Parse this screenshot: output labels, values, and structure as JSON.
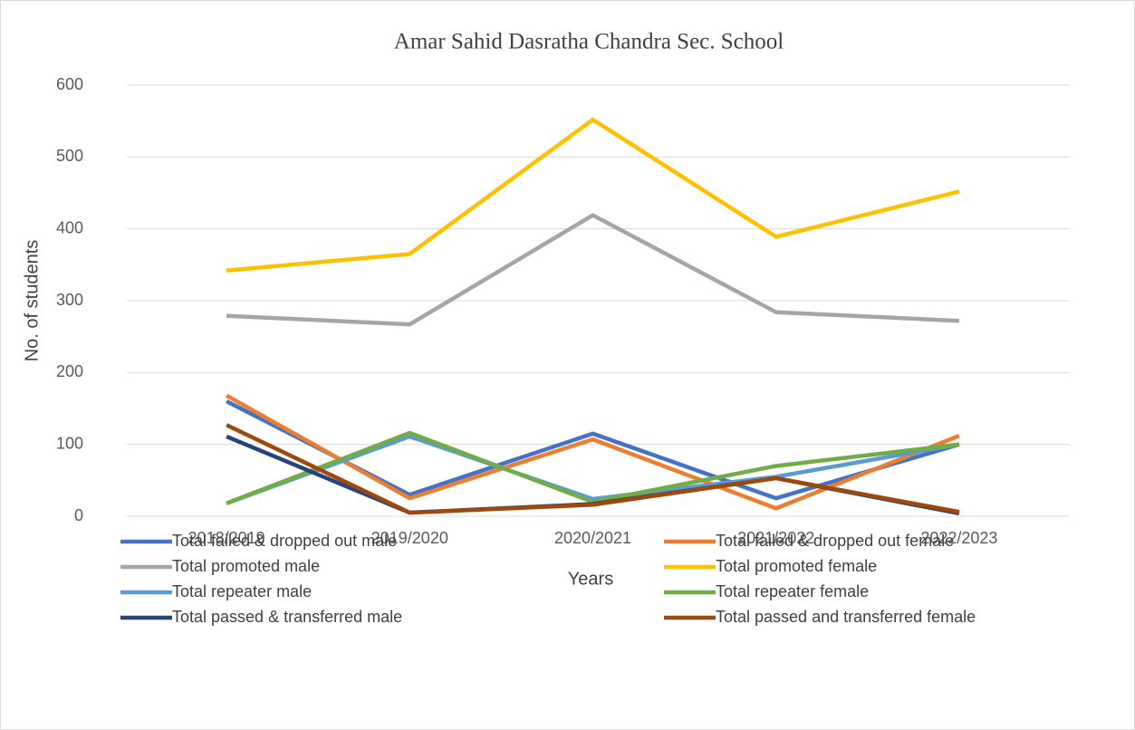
{
  "chart_data": {
    "type": "line",
    "title": "Amar Sahid Dasratha Chandra Sec. School",
    "x_label": "Years",
    "y_label": "No. of students",
    "categories": [
      "2018/2019",
      "2019/2020",
      "2020/2021",
      "2021/2022",
      "2022/2023"
    ],
    "series": [
      {
        "name": "Total failed & dropped out male",
        "color": "#4472c4",
        "values": [
          160,
          30,
          115,
          25,
          100
        ]
      },
      {
        "name": "Total failed & dropped out female",
        "color": "#ed7d31",
        "values": [
          168,
          25,
          107,
          11,
          112
        ]
      },
      {
        "name": "Total promoted male",
        "color": "#a5a5a5",
        "values": [
          279,
          267,
          419,
          284,
          272
        ]
      },
      {
        "name": "Total promoted female",
        "color": "#ffc000",
        "values": [
          342,
          365,
          552,
          389,
          452
        ]
      },
      {
        "name": "Total repeater male",
        "color": "#5b9bd5",
        "values": [
          18,
          111,
          24,
          55,
          100
        ]
      },
      {
        "name": "Total repeater female",
        "color": "#70ad47",
        "values": [
          18,
          116,
          20,
          70,
          100
        ]
      },
      {
        "name": "Total passed & transferred male",
        "color": "#264478",
        "values": [
          111,
          5,
          17,
          53,
          4
        ]
      },
      {
        "name": "Total passed and transferred female",
        "color": "#9e480e",
        "values": [
          127,
          5,
          16,
          53,
          6
        ]
      }
    ],
    "ylim": [
      0,
      600
    ],
    "yticks": [
      0,
      100,
      200,
      300,
      400,
      500,
      600
    ],
    "grid": true,
    "legend": "bottom"
  }
}
